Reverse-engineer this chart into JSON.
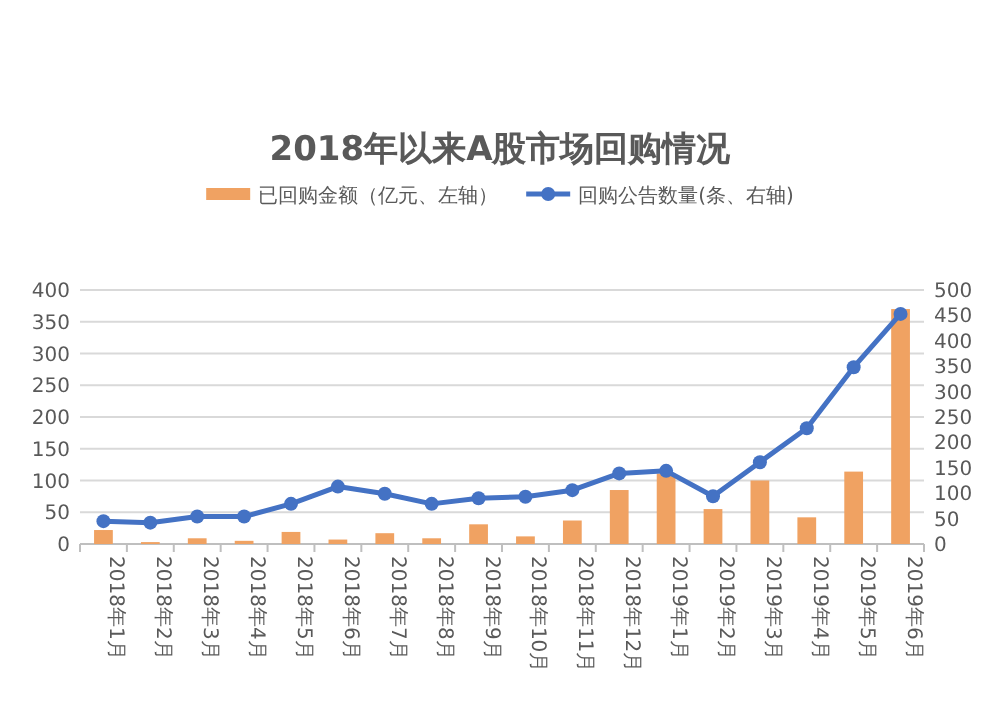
{
  "chart_data": {
    "type": "bar",
    "title": "2018年以来A股市场回购情况",
    "categories": [
      "2018年1月",
      "2018年2月",
      "2018年3月",
      "2018年4月",
      "2018年5月",
      "2018年6月",
      "2018年7月",
      "2018年8月",
      "2018年9月",
      "2018年10月",
      "2018年11月",
      "2018年12月",
      "2019年1月",
      "2019年2月",
      "2019年3月",
      "2019年4月",
      "2019年5月",
      "2019年6月"
    ],
    "series": [
      {
        "name": "已回购金额（亿元、左轴）",
        "color": "#f0a262",
        "values": [
          22,
          3,
          9,
          5,
          19,
          7,
          17,
          9,
          31,
          12,
          37,
          85,
          111,
          55,
          100,
          42,
          114,
          370
        ]
      },
      {
        "name": "回购公告数量(条、右轴)",
        "type": "line",
        "axis": "y2",
        "color": "#4472c4",
        "values": [
          45,
          42,
          54,
          54,
          79,
          113,
          99,
          79,
          90,
          93,
          106,
          139,
          144,
          94,
          161,
          228,
          348,
          453
        ]
      }
    ],
    "ylim": [
      0,
      400
    ],
    "yticks": [
      0,
      50,
      100,
      150,
      200,
      250,
      300,
      350,
      400
    ],
    "y2lim": [
      0,
      500
    ],
    "y2ticks": [
      0,
      50,
      100,
      150,
      200,
      250,
      300,
      350,
      400,
      450,
      500
    ],
    "grid": "y",
    "legend": "top",
    "marker": "circle"
  }
}
